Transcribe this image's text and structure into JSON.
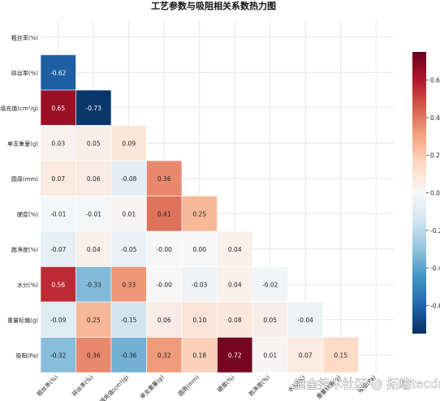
{
  "chart_data": {
    "type": "heatmap",
    "title": "工艺参数与吸阻相关系数热力图",
    "labels": [
      "粗丝率(%)",
      "碎丝率(%)",
      "填充值(cm³/g)",
      "单支重量(g)",
      "圆周(mm)",
      "硬度(%)",
      "跑净度(%)",
      "水分(%)",
      "重量标偏(g)",
      "吸阻(Pa)"
    ],
    "matrix": [
      [],
      [
        -0.62
      ],
      [
        0.65,
        -0.73
      ],
      [
        0.03,
        0.05,
        0.09
      ],
      [
        0.07,
        0.06,
        -0.08,
        0.36
      ],
      [
        -0.01,
        -0.01,
        0.01,
        0.41,
        0.25
      ],
      [
        -0.07,
        0.04,
        -0.05,
        -0.0,
        0.0,
        0.04
      ],
      [
        0.56,
        -0.33,
        0.33,
        -0.0,
        -0.03,
        0.04,
        -0.02
      ],
      [
        -0.09,
        0.25,
        -0.15,
        0.06,
        0.1,
        0.08,
        0.05,
        -0.04
      ],
      [
        -0.32,
        0.36,
        -0.36,
        0.32,
        0.18,
        0.72,
        0.01,
        0.07,
        0.15
      ]
    ],
    "value_labels": [
      [],
      [
        "-0.62"
      ],
      [
        "0.65",
        "-0.73"
      ],
      [
        "0.03",
        "0.05",
        "0.09"
      ],
      [
        "0.07",
        "0.06",
        "-0.08",
        "0.36"
      ],
      [
        "-0.01",
        "-0.01",
        "0.01",
        "0.41",
        "0.25"
      ],
      [
        "-0.07",
        "0.04",
        "-0.05",
        "-0.00",
        "0.00",
        "0.04"
      ],
      [
        "0.56",
        "-0.33",
        "0.33",
        "-0.00",
        "-0.03",
        "0.04",
        "-0.02"
      ],
      [
        "-0.09",
        "0.25",
        "-0.15",
        "0.06",
        "0.10",
        "0.08",
        "0.05",
        "-0.04"
      ],
      [
        "-0.32",
        "0.36",
        "-0.36",
        "0.32",
        "0.18",
        "0.72",
        "0.01",
        "0.07",
        "0.15"
      ]
    ],
    "colorbar": {
      "range": [
        -0.75,
        0.75
      ],
      "ticks": [
        -0.6,
        -0.4,
        -0.2,
        0.0,
        0.2,
        0.4,
        0.6
      ],
      "tick_labels": [
        "-0.6",
        "-0.4",
        "-0.2",
        "0.0",
        "0.2",
        "0.4",
        "0.6"
      ],
      "colormap": "RdBu_r",
      "stops": [
        "#053061",
        "#2166ac",
        "#4393c3",
        "#92c5de",
        "#d1e5f0",
        "#f7f7f7",
        "#fddbc7",
        "#f4a582",
        "#d6604d",
        "#b2182b",
        "#67001f"
      ]
    },
    "grid": true,
    "mask": "upper-triangle"
  },
  "watermark": "掘金技术社区 @ 拓端tecdat"
}
